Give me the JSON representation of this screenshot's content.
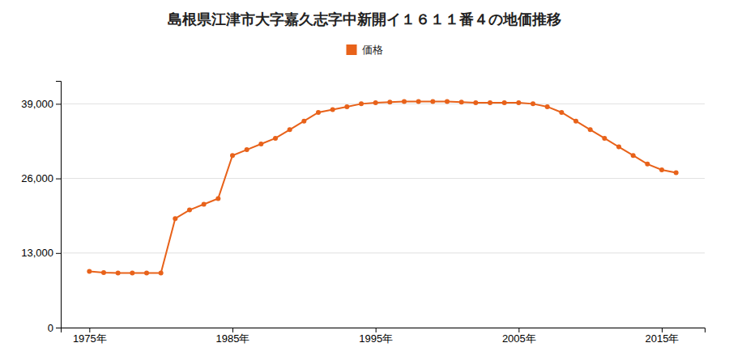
{
  "chart_data": {
    "type": "line",
    "title": "島根県江津市大字嘉久志字中新開イ１６１１番４の地価推移",
    "x": [
      1975,
      1976,
      1977,
      1978,
      1979,
      1980,
      1981,
      1982,
      1983,
      1984,
      1985,
      1986,
      1987,
      1988,
      1989,
      1990,
      1991,
      1992,
      1993,
      1994,
      1995,
      1996,
      1997,
      1998,
      1999,
      2000,
      2001,
      2002,
      2003,
      2004,
      2005,
      2006,
      2007,
      2008,
      2009,
      2010,
      2011,
      2012,
      2013,
      2014,
      2015,
      2016
    ],
    "series": [
      {
        "name": "価格",
        "color": "#E8621A",
        "marker": "circle",
        "values": [
          9800,
          9600,
          9500,
          9500,
          9500,
          9500,
          19000,
          20500,
          21500,
          22500,
          30000,
          31000,
          32000,
          33000,
          34500,
          36000,
          37500,
          38000,
          38500,
          39000,
          39200,
          39300,
          39400,
          39400,
          39400,
          39400,
          39300,
          39200,
          39200,
          39200,
          39200,
          39000,
          38500,
          37500,
          36000,
          34500,
          33000,
          31500,
          30000,
          28500,
          27500,
          27000
        ]
      }
    ],
    "xlim": [
      1973,
      2018
    ],
    "xticks": [
      {
        "value": 1975,
        "label": "1975年"
      },
      {
        "value": 1985,
        "label": "1985年"
      },
      {
        "value": 1995,
        "label": "1995年"
      },
      {
        "value": 2005,
        "label": "2005年"
      },
      {
        "value": 2015,
        "label": "2015年"
      }
    ],
    "ylim": [
      0,
      43000
    ],
    "yticks": [
      0,
      {
        "value": 13000,
        "label": "13,000"
      },
      {
        "value": 26000,
        "label": "26,000"
      },
      {
        "value": 39000,
        "label": "39,000"
      }
    ],
    "grid": true,
    "legend": "top"
  }
}
